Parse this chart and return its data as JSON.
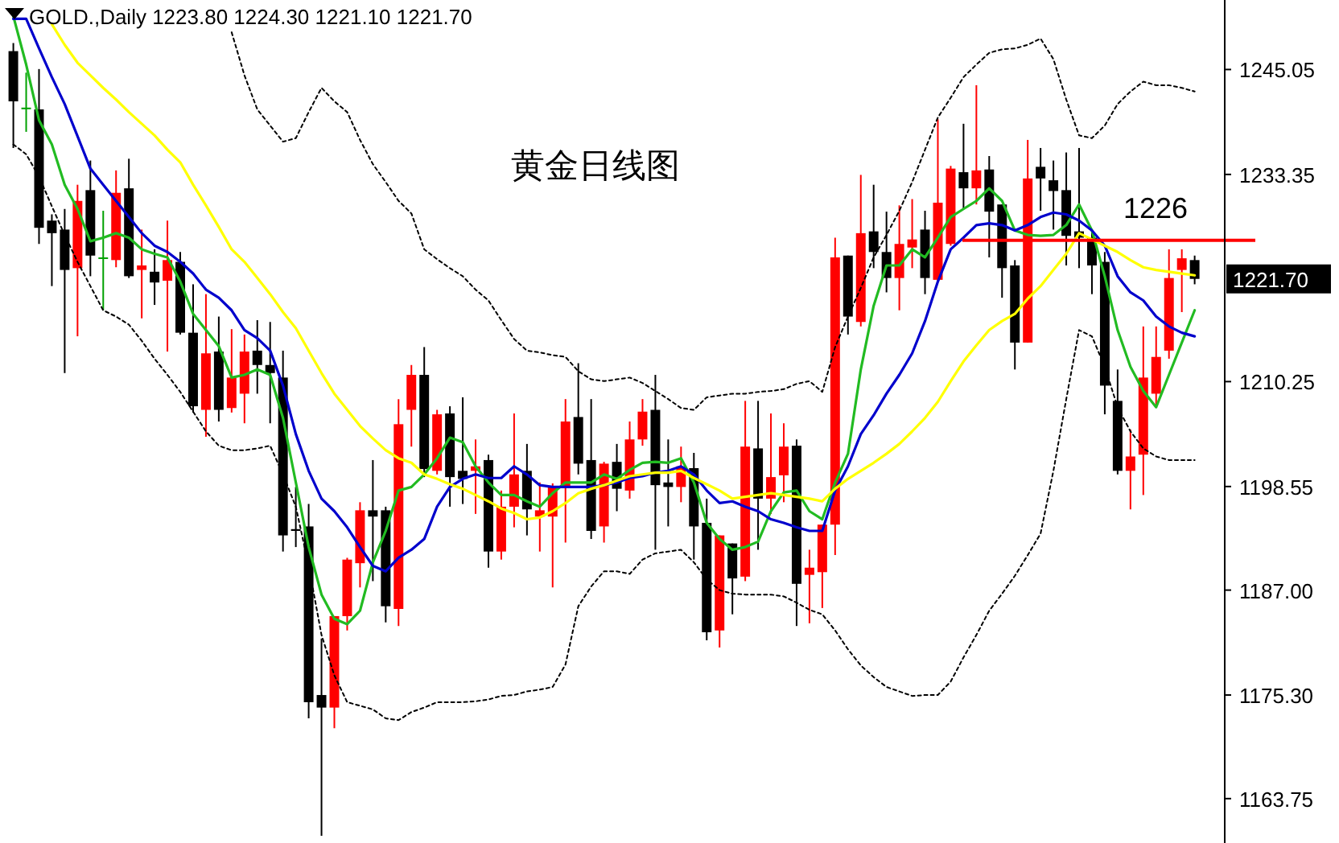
{
  "chart_data": {
    "type": "candlestick",
    "title": "GOLD.,Daily  1223.80 1224.30 1221.10 1221.70",
    "annotations": [
      "黄金日线图",
      "1221.70"
    ],
    "categories": [
      null,
      null,
      null,
      null,
      null,
      null,
      null,
      null,
      null,
      null,
      null,
      null,
      null,
      null,
      null,
      null,
      null,
      null,
      null,
      null,
      null,
      null,
      null,
      null,
      null,
      null,
      null,
      null,
      null,
      null,
      null,
      null,
      null,
      null,
      null,
      null,
      null,
      null,
      null,
      null,
      null,
      null,
      null,
      null,
      null,
      null,
      null,
      null,
      null,
      null,
      null,
      null,
      null,
      null,
      null,
      null,
      null,
      null,
      null,
      null,
      null,
      null,
      null,
      null,
      null,
      null,
      null,
      null,
      null,
      null,
      null,
      null,
      null,
      null,
      null,
      null,
      null,
      null,
      null,
      null,
      null,
      null,
      null,
      null,
      null,
      null,
      null,
      null,
      null,
      null,
      null,
      null,
      null
    ],
    "ohlc": [
      [
        1247.1,
        1248.0,
        1236.3,
        1241.5
      ],
      [
        1240.8,
        1244.7,
        1238.1,
        1240.8
      ],
      [
        1240.6,
        1245.1,
        1225.6,
        1227.4
      ],
      [
        1228.2,
        1228.9,
        1220.9,
        1226.8
      ],
      [
        1227.2,
        1229.5,
        1211.2,
        1222.7
      ],
      [
        1222.9,
        1232.2,
        1215.3,
        1230.4
      ],
      [
        1231.6,
        1234.9,
        1222.0,
        1224.3
      ],
      [
        1224.1,
        1229.3,
        1218.2,
        1224.1
      ],
      [
        1223.8,
        1233.8,
        1223.0,
        1231.3
      ],
      [
        1231.8,
        1235.1,
        1221.8,
        1222.0
      ],
      [
        1222.7,
        1227.2,
        1217.3,
        1223.2
      ],
      [
        1222.5,
        1225.0,
        1218.8,
        1221.3
      ],
      [
        1221.5,
        1228.2,
        1213.6,
        1223.8
      ],
      [
        1223.6,
        1224.7,
        1215.5,
        1215.7
      ],
      [
        1215.7,
        1221.1,
        1206.8,
        1207.5
      ],
      [
        1207.1,
        1220.0,
        1204.1,
        1213.4
      ],
      [
        1213.6,
        1217.5,
        1205.8,
        1207.1
      ],
      [
        1207.3,
        1216.1,
        1206.8,
        1210.7
      ],
      [
        1208.9,
        1215.5,
        1205.6,
        1213.6
      ],
      [
        1213.7,
        1217.1,
        1208.9,
        1212.1
      ],
      [
        1212.1,
        1216.9,
        1205.6,
        1211.2
      ],
      [
        1210.7,
        1213.7,
        1191.3,
        1193.1
      ],
      [
        1193.8,
        1198.5,
        1191.8,
        1193.6
      ],
      [
        1194.1,
        1196.6,
        1172.7,
        1174.5
      ],
      [
        1175.3,
        1181.6,
        1159.6,
        1173.9
      ],
      [
        1173.9,
        1184.1,
        1171.6,
        1184.1
      ],
      [
        1184.1,
        1190.6,
        1182.5,
        1190.4
      ],
      [
        1190.0,
        1196.8,
        1187.3,
        1195.9
      ],
      [
        1195.9,
        1201.5,
        1188.0,
        1195.2
      ],
      [
        1195.9,
        1196.3,
        1183.4,
        1185.2
      ],
      [
        1184.9,
        1208.3,
        1183.0,
        1205.5
      ],
      [
        1207.1,
        1212.1,
        1203.0,
        1211.0
      ],
      [
        1211.0,
        1214.1,
        1199.6,
        1200.5
      ],
      [
        1200.3,
        1207.1,
        1199.9,
        1206.6
      ],
      [
        1206.7,
        1207.5,
        1196.3,
        1199.6
      ],
      [
        1200.3,
        1208.5,
        1196.6,
        1199.4
      ],
      [
        1200.3,
        1203.8,
        1195.5,
        1200.8
      ],
      [
        1201.5,
        1202.1,
        1189.5,
        1191.3
      ],
      [
        1191.3,
        1198.1,
        1190.4,
        1196.3
      ],
      [
        1196.3,
        1206.7,
        1194.0,
        1199.9
      ],
      [
        1200.3,
        1203.3,
        1193.1,
        1196.0
      ],
      [
        1195.2,
        1199.0,
        1191.3,
        1195.9
      ],
      [
        1195.2,
        1198.9,
        1187.3,
        1198.6
      ],
      [
        1198.5,
        1208.3,
        1192.3,
        1205.8
      ],
      [
        1206.3,
        1212.3,
        1199.9,
        1201.1
      ],
      [
        1201.5,
        1208.3,
        1192.7,
        1193.6
      ],
      [
        1194.1,
        1201.3,
        1192.3,
        1201.1
      ],
      [
        1201.3,
        1203.3,
        1195.8,
        1198.3
      ],
      [
        1198.1,
        1205.8,
        1197.2,
        1203.8
      ],
      [
        1203.8,
        1208.3,
        1203.1,
        1206.9
      ],
      [
        1207.1,
        1211.0,
        1191.5,
        1198.7
      ],
      [
        1199.0,
        1203.8,
        1194.1,
        1198.5
      ],
      [
        1198.5,
        1203.0,
        1196.8,
        1200.8
      ],
      [
        1200.6,
        1202.3,
        1190.4,
        1194.1
      ],
      [
        1194.5,
        1197.2,
        1181.4,
        1182.3
      ],
      [
        1182.5,
        1193.1,
        1180.6,
        1193.1
      ],
      [
        1192.2,
        1192.2,
        1184.3,
        1188.3
      ],
      [
        1188.5,
        1208.1,
        1188.0,
        1203.0
      ],
      [
        1202.8,
        1208.1,
        1191.5,
        1197.2
      ],
      [
        1197.2,
        1206.7,
        1195.5,
        1199.6
      ],
      [
        1199.8,
        1205.6,
        1196.8,
        1203.0
      ],
      [
        1203.1,
        1203.8,
        1183.0,
        1187.7
      ],
      [
        1188.7,
        1191.5,
        1183.3,
        1189.5
      ],
      [
        1189.0,
        1194.3,
        1185.0,
        1194.3
      ],
      [
        1194.3,
        1226.3,
        1190.9,
        1224.1
      ],
      [
        1224.3,
        1224.3,
        1215.5,
        1217.5
      ],
      [
        1216.9,
        1233.3,
        1216.4,
        1226.8
      ],
      [
        1227.0,
        1232.2,
        1222.9,
        1224.7
      ],
      [
        1224.7,
        1229.2,
        1220.2,
        1221.8
      ],
      [
        1221.8,
        1229.9,
        1218.2,
        1225.6
      ],
      [
        1225.2,
        1230.6,
        1222.9,
        1226.1
      ],
      [
        1227.2,
        1229.3,
        1220.0,
        1221.8
      ],
      [
        1221.6,
        1239.5,
        1221.4,
        1230.2
      ],
      [
        1225.6,
        1234.3,
        1225.4,
        1234.0
      ],
      [
        1233.6,
        1239.0,
        1229.5,
        1231.8
      ],
      [
        1231.8,
        1243.3,
        1230.0,
        1233.8
      ],
      [
        1233.9,
        1235.4,
        1224.1,
        1229.2
      ],
      [
        1230.0,
        1230.0,
        1219.6,
        1222.9
      ],
      [
        1223.2,
        1223.8,
        1211.6,
        1214.6
      ],
      [
        1214.6,
        1237.2,
        1214.6,
        1232.9
      ],
      [
        1234.2,
        1236.3,
        1229.3,
        1232.9
      ],
      [
        1232.7,
        1234.9,
        1227.2,
        1231.5
      ],
      [
        1231.6,
        1235.8,
        1223.2,
        1226.5
      ],
      [
        1227.0,
        1236.3,
        1222.9,
        1226.3
      ],
      [
        1226.3,
        1227.2,
        1220.0,
        1223.2
      ],
      [
        1223.6,
        1224.7,
        1206.6,
        1209.8
      ],
      [
        1208.1,
        1211.6,
        1199.9,
        1200.3
      ],
      [
        1200.3,
        1204.9,
        1196.0,
        1201.9
      ],
      [
        1202.1,
        1216.4,
        1197.6,
        1210.7
      ],
      [
        1208.9,
        1216.4,
        1207.5,
        1213.0
      ],
      [
        1213.7,
        1225.0,
        1212.8,
        1221.8
      ],
      [
        1222.7,
        1225.0,
        1218.0,
        1224.0
      ],
      [
        1223.8,
        1224.3,
        1221.1,
        1221.7
      ]
    ],
    "colors": [
      "#000000",
      "#00a000",
      "#000000",
      "#000000",
      "#000000",
      "#ff0000",
      "#000000",
      "#00a000",
      "#ff0000",
      "#000000",
      "#ff0000",
      "#000000",
      "#ff0000",
      "#000000",
      "#000000",
      "#ff0000",
      "#000000",
      "#ff0000",
      "#ff0000",
      "#000000",
      "#000000",
      "#000000",
      "#000000",
      "#000000",
      "#000000",
      "#ff0000",
      "#ff0000",
      "#ff0000",
      "#000000",
      "#000000",
      "#ff0000",
      "#ff0000",
      "#000000",
      "#ff0000",
      "#000000",
      "#000000",
      "#ff0000",
      "#000000",
      "#ff0000",
      "#ff0000",
      "#000000",
      "#ff0000",
      "#ff0000",
      "#ff0000",
      "#000000",
      "#000000",
      "#ff0000",
      "#000000",
      "#ff0000",
      "#ff0000",
      "#000000",
      "#000000",
      "#ff0000",
      "#000000",
      "#000000",
      "#ff0000",
      "#000000",
      "#ff0000",
      "#000000",
      "#ff0000",
      "#ff0000",
      "#000000",
      "#ff0000",
      "#ff0000",
      "#ff0000",
      "#000000",
      "#ff0000",
      "#000000",
      "#000000",
      "#ff0000",
      "#ff0000",
      "#000000",
      "#ff0000",
      "#ff0000",
      "#000000",
      "#ff0000",
      "#000000",
      "#000000",
      "#000000",
      "#ff0000",
      "#000000",
      "#000000",
      "#000000",
      "#000000",
      "#000000",
      "#000000",
      "#000000",
      "#ff0000",
      "#ff0000",
      "#ff0000",
      "#ff0000",
      "#ff0000",
      "#000000"
    ],
    "series": [
      {
        "type": "line",
        "color": "#22bb22",
        "line_style": "solid",
        "values": [
          1251.0,
          1245.6,
          1239.4,
          1236.7,
          1232.2,
          1229.5,
          1225.9,
          1226.3,
          1226.8,
          1226.3,
          1225.0,
          1224.5,
          1224.1,
          1221.4,
          1217.8,
          1216.0,
          1214.2,
          1210.7,
          1211.0,
          1211.6,
          1211.0,
          1206.2,
          1199.0,
          1191.8,
          1186.5,
          1183.8,
          1183.2,
          1184.7,
          1190.1,
          1193.6,
          1198.1,
          1198.5,
          1199.9,
          1201.7,
          1204.0,
          1203.5,
          1200.8,
          1199.0,
          1197.6,
          1197.6,
          1196.9,
          1196.3,
          1197.8,
          1199.0,
          1199.0,
          1199.0,
          1199.9,
          1199.4,
          1200.4,
          1201.2,
          1201.3,
          1201.2,
          1201.7,
          1199.0,
          1194.5,
          1192.7,
          1191.5,
          1191.8,
          1192.4,
          1195.8,
          1197.9,
          1198.1,
          1195.8,
          1194.9,
          1199.0,
          1202.2,
          1211.6,
          1218.7,
          1223.2,
          1223.2,
          1225.0,
          1224.1,
          1226.3,
          1228.6,
          1229.5,
          1230.4,
          1231.8,
          1230.4,
          1227.1,
          1226.6,
          1226.5,
          1226.6,
          1227.7,
          1230.0,
          1227.1,
          1222.0,
          1216.0,
          1211.9,
          1209.2,
          1207.4,
          1211.0,
          1214.6,
          1218.2
        ]
      },
      {
        "type": "line",
        "color": "#0000cc",
        "line_style": "solid",
        "values": [
          1250.7,
          1250.7,
          1247.4,
          1244.2,
          1241.2,
          1237.6,
          1234.0,
          1232.2,
          1230.4,
          1228.6,
          1226.8,
          1225.4,
          1224.7,
          1223.6,
          1222.3,
          1220.5,
          1219.6,
          1218.2,
          1216.0,
          1215.1,
          1213.7,
          1209.8,
          1204.4,
          1200.3,
          1197.2,
          1195.8,
          1194.0,
          1191.8,
          1189.7,
          1189.1,
          1190.6,
          1191.5,
          1192.7,
          1196.3,
          1198.5,
          1199.4,
          1199.9,
          1199.5,
          1199.5,
          1200.8,
          1199.9,
          1198.7,
          1198.5,
          1198.5,
          1198.5,
          1198.5,
          1198.7,
          1199.0,
          1199.5,
          1199.7,
          1200.1,
          1200.3,
          1200.8,
          1199.9,
          1198.1,
          1196.7,
          1196.9,
          1196.3,
          1195.8,
          1194.9,
          1194.5,
          1194.0,
          1193.6,
          1193.6,
          1198.1,
          1200.8,
          1204.4,
          1206.5,
          1208.9,
          1211.0,
          1213.4,
          1217.0,
          1221.4,
          1225.0,
          1226.3,
          1227.7,
          1227.9,
          1227.7,
          1227.1,
          1227.7,
          1228.6,
          1229.1,
          1228.9,
          1228.2,
          1227.1,
          1225.4,
          1222.0,
          1220.2,
          1219.3,
          1217.5,
          1216.4,
          1215.7,
          1215.3
        ]
      },
      {
        "type": "line",
        "color": "#ffff00",
        "line_style": "solid",
        "values": [
          null,
          null,
          null,
          1250.1,
          1247.8,
          1245.8,
          1244.4,
          1243.0,
          1241.7,
          1240.3,
          1239.0,
          1237.7,
          1236.1,
          1234.7,
          1232.2,
          1229.9,
          1227.5,
          1225.0,
          1223.6,
          1221.8,
          1220.0,
          1218.0,
          1216.2,
          1213.7,
          1211.2,
          1208.9,
          1207.1,
          1205.3,
          1203.9,
          1202.6,
          1201.7,
          1201.2,
          1199.9,
          1199.4,
          1198.8,
          1198.3,
          1197.6,
          1196.9,
          1196.1,
          1195.6,
          1194.9,
          1195.1,
          1195.8,
          1196.7,
          1197.8,
          1198.3,
          1198.7,
          1199.2,
          1199.7,
          1199.9,
          1200.1,
          1200.1,
          1200.3,
          1199.5,
          1198.8,
          1198.1,
          1197.2,
          1197.4,
          1197.6,
          1197.8,
          1197.6,
          1197.4,
          1197.2,
          1196.9,
          1198.3,
          1199.4,
          1200.3,
          1201.2,
          1202.2,
          1203.3,
          1204.7,
          1206.2,
          1208.0,
          1210.3,
          1212.5,
          1214.3,
          1216.0,
          1217.0,
          1217.8,
          1219.5,
          1220.9,
          1222.7,
          1224.5,
          1226.8,
          1226.1,
          1225.4,
          1224.7,
          1223.8,
          1223.0,
          1222.7,
          1222.5,
          1222.3,
          1222.1
        ]
      },
      {
        "type": "line",
        "color": "#000000",
        "line_style": "dotted",
        "values": [
          null,
          null,
          null,
          null,
          null,
          null,
          null,
          null,
          null,
          null,
          null,
          null,
          null,
          null,
          null,
          null,
          null,
          1249.2,
          1244.4,
          1240.6,
          1238.8,
          1237.0,
          1237.4,
          1240.3,
          1243.0,
          1241.5,
          1240.3,
          1237.2,
          1234.5,
          1232.5,
          1230.4,
          1229.0,
          1225.0,
          1223.9,
          1222.9,
          1222.0,
          1220.5,
          1219.3,
          1217.1,
          1215.0,
          1213.7,
          1213.5,
          1213.2,
          1213.0,
          1211.4,
          1210.5,
          1210.3,
          1210.5,
          1210.7,
          1210.1,
          1209.2,
          1208.3,
          1207.3,
          1207.1,
          1208.5,
          1208.7,
          1208.9,
          1208.9,
          1209.1,
          1209.2,
          1209.4,
          1210.0,
          1210.3,
          1209.1,
          1214.1,
          1217.5,
          1220.7,
          1224.1,
          1226.6,
          1229.3,
          1232.5,
          1236.1,
          1239.7,
          1241.9,
          1244.2,
          1245.6,
          1246.9,
          1247.3,
          1247.4,
          1247.8,
          1248.5,
          1246.2,
          1241.7,
          1237.7,
          1237.4,
          1238.8,
          1241.2,
          1242.6,
          1243.7,
          1243.3,
          1243.3,
          1243.0,
          1242.6
        ]
      },
      {
        "type": "line",
        "color": "#000000",
        "line_style": "dotted",
        "values": [
          1236.7,
          1235.6,
          1233.1,
          1229.8,
          1226.6,
          1223.6,
          1220.9,
          1218.2,
          1217.5,
          1216.6,
          1214.8,
          1212.8,
          1211.0,
          1209.1,
          1206.9,
          1204.7,
          1203.1,
          1202.6,
          1202.6,
          1202.8,
          1203.1,
          1199.9,
          1196.3,
          1189.7,
          1182.0,
          1177.5,
          1174.5,
          1174.1,
          1173.7,
          1172.7,
          1172.5,
          1173.4,
          1173.9,
          1174.5,
          1174.5,
          1174.5,
          1174.6,
          1174.8,
          1175.2,
          1175.3,
          1175.7,
          1175.9,
          1176.2,
          1178.7,
          1185.2,
          1187.4,
          1189.1,
          1189.1,
          1188.8,
          1190.4,
          1191.1,
          1191.3,
          1191.5,
          1190.1,
          1188.2,
          1187.0,
          1186.6,
          1186.5,
          1186.5,
          1186.5,
          1186.3,
          1185.6,
          1184.8,
          1184.3,
          1182.5,
          1180.4,
          1178.6,
          1177.3,
          1176.2,
          1175.7,
          1175.2,
          1175.3,
          1175.3,
          1176.8,
          1179.5,
          1182.0,
          1184.7,
          1186.6,
          1188.6,
          1190.9,
          1193.3,
          1200.3,
          1208.3,
          1216.0,
          1215.3,
          1211.9,
          1207.4,
          1204.7,
          1202.8,
          1201.9,
          1201.5,
          1201.5,
          1201.5
        ]
      }
    ],
    "ref_lines": [
      {
        "axis": "y",
        "value": 1226,
        "label": "1226",
        "color": "#ff0000"
      }
    ],
    "ylim": [
      1158.8,
      1252.8
    ],
    "yticks": [
      1245.05,
      1233.35,
      1210.25,
      1198.55,
      {
        "value": 1187,
        "label": "1187.00"
      },
      {
        "value": 1175.3,
        "label": "1175.30"
      },
      1163.75
    ],
    "tick_labels": "y"
  }
}
